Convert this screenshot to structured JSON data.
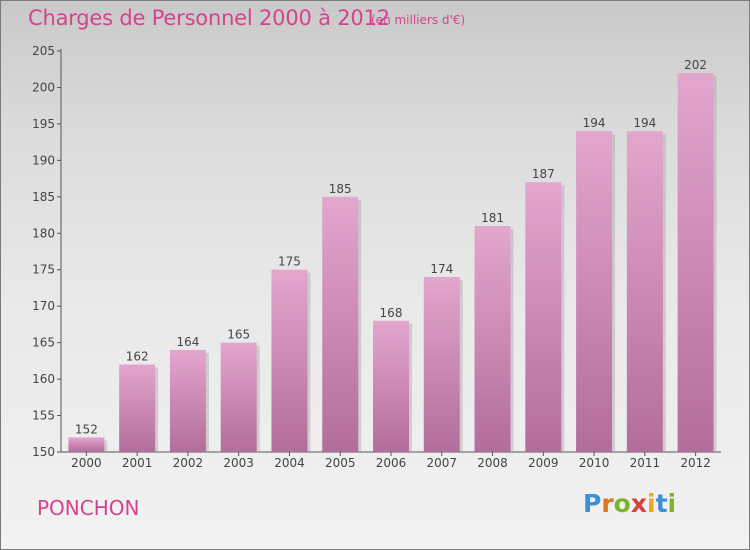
{
  "header": {
    "title": "Charges de Personnel 2000 à 2012",
    "subtitle": "(en milliers d'€)"
  },
  "footer": {
    "commune": "PONCHON",
    "logo": "Proxiti"
  },
  "colors": {
    "accent": "#d6438d",
    "bar_top": "#e3a6cd",
    "bar_bottom": "#b36d9a"
  },
  "chart_data": {
    "type": "bar",
    "title": "Charges de Personnel 2000 à 2012",
    "subtitle": "(en milliers d'€)",
    "categories": [
      "2000",
      "2001",
      "2002",
      "2003",
      "2004",
      "2005",
      "2006",
      "2007",
      "2008",
      "2009",
      "2010",
      "2011",
      "2012"
    ],
    "values": [
      152,
      162,
      164,
      165,
      175,
      185,
      168,
      174,
      181,
      187,
      194,
      194,
      202
    ],
    "ylim": [
      150,
      205
    ],
    "yticks": [
      150,
      155,
      160,
      165,
      170,
      175,
      180,
      185,
      190,
      195,
      200,
      205
    ],
    "grid": false,
    "data_labels": true
  }
}
